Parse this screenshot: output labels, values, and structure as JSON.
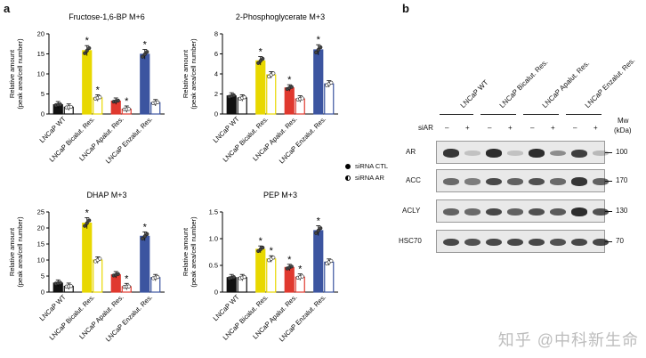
{
  "panel_a_label": "a",
  "panel_b_label": "b",
  "ylabel_line1": "Relative amount",
  "ylabel_line2": "(peak area/cell number)",
  "legend": [
    {
      "label": "siRNA CTL",
      "style": "solid"
    },
    {
      "label": "siRNA AR",
      "style": "half"
    }
  ],
  "colors": {
    "LNCaP WT": "#111111",
    "LNCaP Bicalut. Res.": "#e8d800",
    "LNCaP Apalut. Res.": "#e0392f",
    "LNCaP Enzalut. Res.": "#3c55a0"
  },
  "chart_data": [
    {
      "type": "bar",
      "title": "Fructose-1,6-BP M+6",
      "categories": [
        "LNCaP WT",
        "LNCaP Bicalut. Res.",
        "LNCaP Apalut. Res.",
        "LNCaP Enzalut. Res."
      ],
      "series": [
        {
          "name": "siRNA CTL",
          "values": [
            2.3,
            15.8,
            3.2,
            14.9
          ]
        },
        {
          "name": "siRNA AR",
          "values": [
            1.7,
            4.0,
            1.2,
            2.8
          ]
        }
      ],
      "significance": [
        [
          false,
          false
        ],
        [
          true,
          true
        ],
        [
          false,
          true
        ],
        [
          true,
          false
        ]
      ],
      "ylim": [
        0,
        20
      ],
      "yticks": [
        "0",
        "5",
        "10",
        "15",
        "20"
      ]
    },
    {
      "type": "bar",
      "title": "2-Phosphoglycerate M+3",
      "categories": [
        "LNCaP WT",
        "LNCaP Bicalut. Res.",
        "LNCaP Apalut. Res.",
        "LNCaP Enzalut. Res."
      ],
      "series": [
        {
          "name": "siRNA CTL",
          "values": [
            1.8,
            5.3,
            2.6,
            6.4
          ]
        },
        {
          "name": "siRNA AR",
          "values": [
            1.6,
            3.9,
            1.5,
            3.0
          ]
        }
      ],
      "significance": [
        [
          false,
          false
        ],
        [
          true,
          false
        ],
        [
          true,
          false
        ],
        [
          true,
          false
        ]
      ],
      "ylim": [
        0,
        8
      ],
      "yticks": [
        "0",
        "2",
        "4",
        "6",
        "8"
      ]
    },
    {
      "type": "bar",
      "title": "DHAP M+3",
      "categories": [
        "LNCaP WT",
        "LNCaP Bicalut. Res.",
        "LNCaP Apalut. Res.",
        "LNCaP Enzalut. Res."
      ],
      "series": [
        {
          "name": "siRNA CTL",
          "values": [
            2.8,
            21.5,
            5.4,
            17.4
          ]
        },
        {
          "name": "siRNA AR",
          "values": [
            1.8,
            10.0,
            1.7,
            4.5
          ]
        }
      ],
      "significance": [
        [
          false,
          false
        ],
        [
          true,
          false
        ],
        [
          false,
          true
        ],
        [
          true,
          false
        ]
      ],
      "ylim": [
        0,
        25
      ],
      "yticks": [
        "0",
        "5",
        "10",
        "15",
        "20",
        "25"
      ]
    },
    {
      "type": "bar",
      "title": "PEP M+3",
      "categories": [
        "LNCaP WT",
        "LNCaP Bicalut. Res.",
        "LNCaP Apalut. Res.",
        "LNCaP Enzalut. Res."
      ],
      "series": [
        {
          "name": "siRNA CTL",
          "values": [
            0.27,
            0.8,
            0.46,
            1.15
          ]
        },
        {
          "name": "siRNA AR",
          "values": [
            0.27,
            0.62,
            0.28,
            0.56
          ]
        }
      ],
      "significance": [
        [
          false,
          false
        ],
        [
          true,
          true
        ],
        [
          true,
          true
        ],
        [
          true,
          false
        ]
      ],
      "ylim": [
        0,
        1.5
      ],
      "yticks": [
        "0",
        "0.5",
        "1.0",
        "1.5"
      ]
    }
  ],
  "significance_mark": "*",
  "blot": {
    "lanes": [
      "LNCaP WT",
      "LNCaP Bicalut. Res.",
      "LNCaP Apalut. Res.",
      "LNCaP Enzalut. Res."
    ],
    "siAR_label": "siAR",
    "siAR_pattern": [
      "–",
      "+",
      "–",
      "+",
      "–",
      "+",
      "–",
      "+"
    ],
    "mw_header_line1": "Mw",
    "mw_header_line2": "(kDa)",
    "rows": [
      {
        "label": "AR",
        "mw": "100",
        "intensity": [
          0.85,
          0.05,
          0.9,
          0.05,
          0.9,
          0.35,
          0.8,
          0.1
        ]
      },
      {
        "label": "ACC",
        "mw": "170",
        "intensity": [
          0.55,
          0.45,
          0.75,
          0.6,
          0.7,
          0.55,
          0.85,
          0.6
        ]
      },
      {
        "label": "ACLY",
        "mw": "130",
        "intensity": [
          0.6,
          0.55,
          0.75,
          0.6,
          0.7,
          0.65,
          0.9,
          0.7
        ]
      },
      {
        "label": "HSC70",
        "mw": "70",
        "intensity": [
          0.75,
          0.7,
          0.75,
          0.75,
          0.75,
          0.7,
          0.75,
          0.75
        ]
      }
    ]
  },
  "watermark": "知乎 @中科新生命"
}
